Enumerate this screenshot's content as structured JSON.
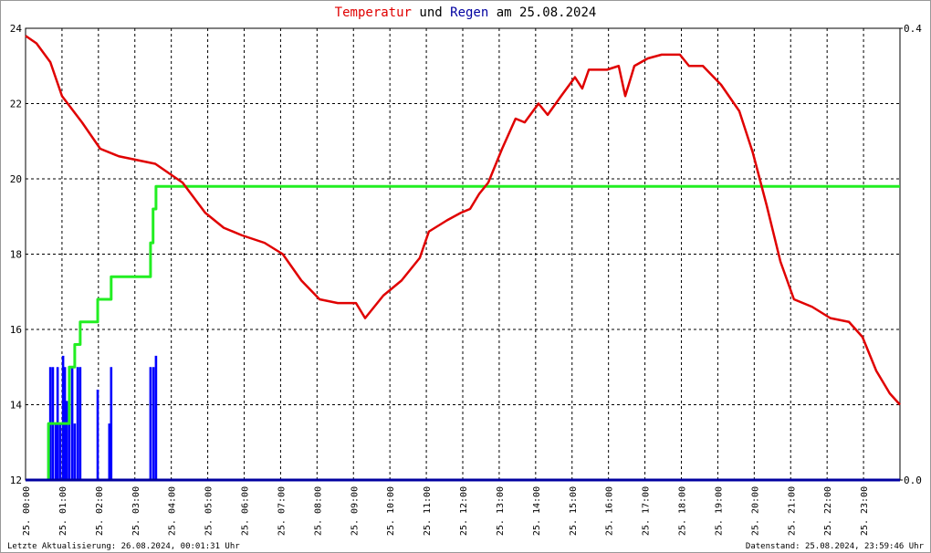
{
  "chart_data": {
    "type": "line",
    "title_parts": [
      {
        "text": "Temperatur",
        "color": "#e00000"
      },
      {
        "text": "und",
        "color": "#000000"
      },
      {
        "text": "Regen",
        "color": "#0000a0"
      },
      {
        "text": "am 25.08.2024",
        "color": "#000000"
      }
    ],
    "footer_left": "Letzte Aktualisierung: 26.08.2024, 00:01:31 Uhr",
    "footer_right": "Datenstand: 25.08.2024, 23:59:46 Uhr",
    "xlim": [
      0,
      24
    ],
    "xticks": [
      {
        "value": 0,
        "label": "25. 00:00"
      },
      {
        "value": 1,
        "label": "25. 01:00"
      },
      {
        "value": 2,
        "label": "25. 02:00"
      },
      {
        "value": 3,
        "label": "25. 03:00"
      },
      {
        "value": 4,
        "label": "25. 04:00"
      },
      {
        "value": 5,
        "label": "25. 05:00"
      },
      {
        "value": 6,
        "label": "25. 06:00"
      },
      {
        "value": 7,
        "label": "25. 07:00"
      },
      {
        "value": 8,
        "label": "25. 08:00"
      },
      {
        "value": 9,
        "label": "25. 09:00"
      },
      {
        "value": 10,
        "label": "25. 10:00"
      },
      {
        "value": 11,
        "label": "25. 11:00"
      },
      {
        "value": 12,
        "label": "25. 12:00"
      },
      {
        "value": 13,
        "label": "25. 13:00"
      },
      {
        "value": 14,
        "label": "25. 14:00"
      },
      {
        "value": 15,
        "label": "25. 15:00"
      },
      {
        "value": 16,
        "label": "25. 16:00"
      },
      {
        "value": 17,
        "label": "25. 17:00"
      },
      {
        "value": 18,
        "label": "25. 18:00"
      },
      {
        "value": 19,
        "label": "25. 19:00"
      },
      {
        "value": 20,
        "label": "25. 20:00"
      },
      {
        "value": 21,
        "label": "25. 21:00"
      },
      {
        "value": 22,
        "label": "25. 22:00"
      },
      {
        "value": 23,
        "label": "25. 23:00"
      }
    ],
    "ylim": [
      12,
      24
    ],
    "yticks": [
      12,
      14,
      16,
      18,
      20,
      22,
      24
    ],
    "y2lim": [
      0,
      0.4
    ],
    "y2ticks": [
      {
        "value": 0,
        "label": "0.0"
      },
      0.4
    ],
    "grid": true,
    "series": [
      {
        "kind": "line",
        "color": "#e00000",
        "x": [
          0,
          0.3,
          0.68,
          1.0,
          1.55,
          2.05,
          2.56,
          3.06,
          3.56,
          4.31,
          4.93,
          5.44,
          5.94,
          6.56,
          7.06,
          7.57,
          8.07,
          8.57,
          9.07,
          9.32,
          9.82,
          10.32,
          10.82,
          11.07,
          11.57,
          11.95,
          12.2,
          12.45,
          12.7,
          13.08,
          13.45,
          13.7,
          14.08,
          14.33,
          14.7,
          15.08,
          15.28,
          15.46,
          15.96,
          16.28,
          16.46,
          16.71,
          17.08,
          17.46,
          17.96,
          18.21,
          18.59,
          19.09,
          19.59,
          19.96,
          20.34,
          20.72,
          21.09,
          21.59,
          22.09,
          22.6,
          22.97,
          23.35,
          23.72,
          24.0
        ],
        "values": [
          23.8,
          23.6,
          23.1,
          22.2,
          21.5,
          20.8,
          20.6,
          20.5,
          20.4,
          19.9,
          19.1,
          18.7,
          18.5,
          18.3,
          18.0,
          17.3,
          16.8,
          16.7,
          16.7,
          16.3,
          16.9,
          17.3,
          17.9,
          18.6,
          18.9,
          19.1,
          19.2,
          19.6,
          19.9,
          20.8,
          21.6,
          21.5,
          22.0,
          21.7,
          22.2,
          22.7,
          22.4,
          22.9,
          22.9,
          23.0,
          22.2,
          23.0,
          23.2,
          23.3,
          23.3,
          23.0,
          23.0,
          22.5,
          21.8,
          20.7,
          19.3,
          17.8,
          16.8,
          16.6,
          16.3,
          16.2,
          15.8,
          14.9,
          14.3,
          14.0
        ]
      },
      {
        "kind": "bar",
        "axis": "y2",
        "color": "#0000ff",
        "x": [
          0.63,
          0.68,
          0.75,
          0.83,
          0.88,
          0.95,
          1.03,
          1.08,
          1.13,
          1.2,
          1.28,
          1.35,
          1.43,
          1.5,
          1.98,
          2.3,
          2.35,
          3.43,
          3.51,
          3.58
        ],
        "values": [
          0.05,
          0.1,
          0.1,
          0.05,
          0.1,
          0.05,
          0.11,
          0.1,
          0.07,
          0.1,
          0.1,
          0.05,
          0.1,
          0.1,
          0.08,
          0.05,
          0.1,
          0.1,
          0.1,
          0.11
        ]
      },
      {
        "kind": "line",
        "step": true,
        "axis": "y2",
        "color": "#22ee22",
        "x": [
          0,
          0.63,
          1.2,
          1.35,
          1.5,
          1.98,
          2.35,
          3.43,
          3.5,
          3.58,
          24
        ],
        "values": [
          0,
          0.05,
          0.1,
          0.12,
          0.14,
          0.16,
          0.18,
          0.21,
          0.24,
          0.26,
          0.26
        ]
      }
    ]
  }
}
